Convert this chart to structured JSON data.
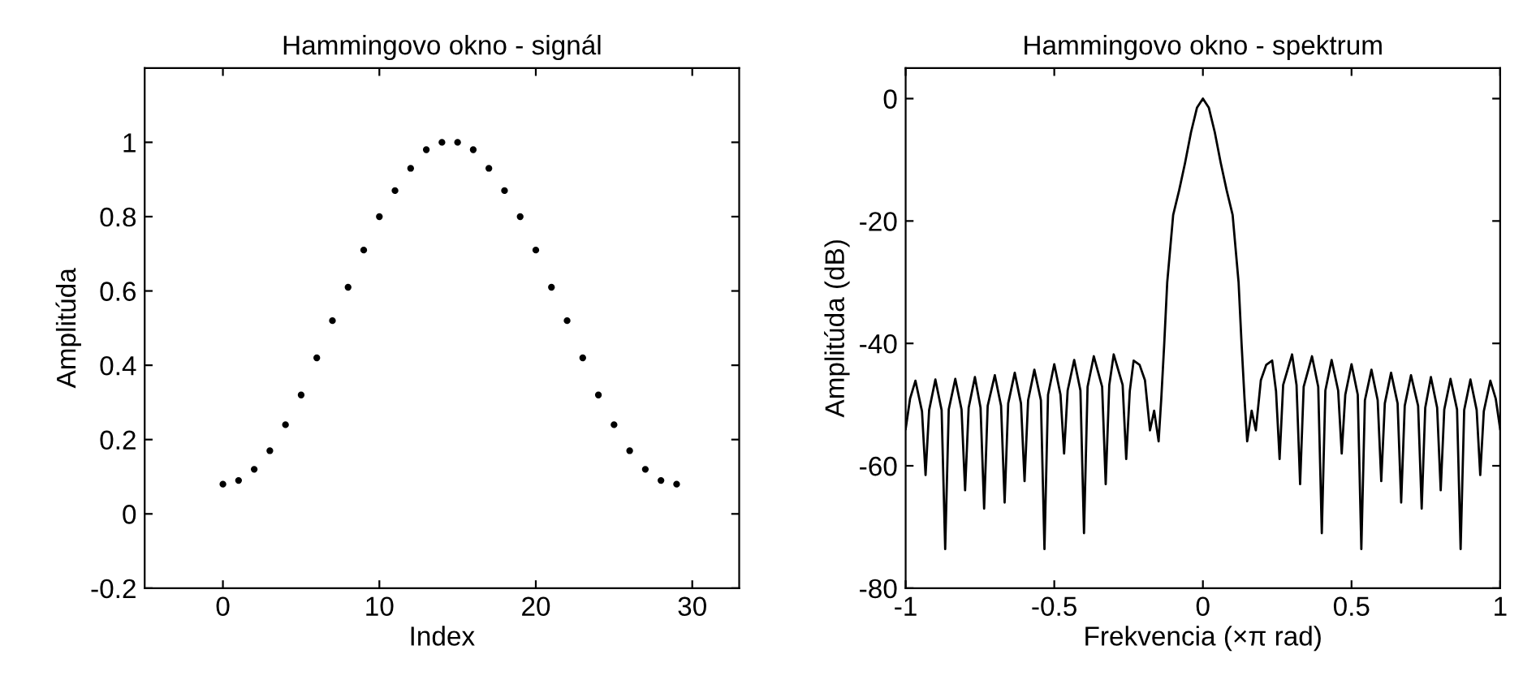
{
  "chart_data": [
    {
      "type": "scatter",
      "title": "Hammingovo okno - signál",
      "xlabel": "Index",
      "ylabel": "Amplitúda",
      "marker": "circle",
      "grid": false,
      "legend": false,
      "xlim": [
        -5,
        33
      ],
      "ylim": [
        -0.2,
        1.2
      ],
      "xticks": [
        0,
        10,
        20,
        30
      ],
      "yticks": [
        -0.2,
        0,
        0.2,
        0.4,
        0.6,
        0.8,
        1
      ],
      "series": [
        {
          "color": "#000000",
          "x": [
            0,
            1,
            2,
            3,
            4,
            5,
            6,
            7,
            8,
            9,
            10,
            11,
            12,
            13,
            14,
            15,
            16,
            17,
            18,
            19,
            20,
            21,
            22,
            23,
            24,
            25,
            26,
            27,
            28,
            29
          ],
          "values": [
            0.08,
            0.09,
            0.12,
            0.17,
            0.24,
            0.32,
            0.42,
            0.52,
            0.61,
            0.71,
            0.8,
            0.87,
            0.93,
            0.98,
            1.0,
            1.0,
            0.98,
            0.93,
            0.87,
            0.8,
            0.71,
            0.61,
            0.52,
            0.42,
            0.32,
            0.24,
            0.17,
            0.12,
            0.09,
            0.08
          ]
        }
      ]
    },
    {
      "type": "line",
      "title": "Hammingovo okno - spektrum",
      "xlabel": "Frekvencia (×π rad)",
      "ylabel": "Amplitúda (dB)",
      "line_style": "solid",
      "marker": "none",
      "grid": false,
      "legend": false,
      "xlim": [
        -1,
        1
      ],
      "ylim": [
        -80,
        5
      ],
      "xticks": [
        -1,
        -0.5,
        0,
        0.5,
        1
      ],
      "yticks": [
        -80,
        -60,
        -40,
        -20,
        0
      ],
      "series": [
        {
          "color": "#000000",
          "x": [
            -1.0,
            -0.985,
            -0.967,
            -0.945,
            -0.933,
            -0.921,
            -0.9,
            -0.879,
            -0.867,
            -0.855,
            -0.833,
            -0.812,
            -0.8,
            -0.788,
            -0.767,
            -0.748,
            -0.736,
            -0.724,
            -0.7,
            -0.679,
            -0.667,
            -0.655,
            -0.633,
            -0.612,
            -0.6,
            -0.588,
            -0.567,
            -0.545,
            -0.533,
            -0.521,
            -0.5,
            -0.479,
            -0.467,
            -0.455,
            -0.433,
            -0.412,
            -0.4,
            -0.388,
            -0.367,
            -0.339,
            -0.327,
            -0.315,
            -0.3,
            -0.27,
            -0.258,
            -0.246,
            -0.233,
            -0.213,
            -0.195,
            -0.178,
            -0.164,
            -0.149,
            -0.14,
            -0.13,
            -0.12,
            -0.1,
            -0.08,
            -0.06,
            -0.04,
            -0.02,
            0,
            0.02,
            0.04,
            0.06,
            0.08,
            0.1,
            0.12,
            0.13,
            0.14,
            0.149,
            0.164,
            0.178,
            0.195,
            0.213,
            0.233,
            0.246,
            0.258,
            0.27,
            0.3,
            0.315,
            0.327,
            0.339,
            0.367,
            0.388,
            0.4,
            0.412,
            0.433,
            0.455,
            0.467,
            0.479,
            0.5,
            0.521,
            0.533,
            0.545,
            0.567,
            0.588,
            0.6,
            0.612,
            0.633,
            0.655,
            0.667,
            0.679,
            0.7,
            0.724,
            0.736,
            0.748,
            0.767,
            0.788,
            0.8,
            0.812,
            0.833,
            0.855,
            0.867,
            0.879,
            0.9,
            0.921,
            0.933,
            0.945,
            0.967,
            0.985,
            1.0
          ],
          "values": [
            -54,
            -49,
            -46.1,
            -51.1,
            -61.5,
            -50.9,
            -45.9,
            -50.9,
            -73.6,
            -50.8,
            -45.8,
            -50.8,
            -64,
            -50.5,
            -45.5,
            -50.5,
            -67,
            -50.2,
            -45.2,
            -50.2,
            -66,
            -49.8,
            -44.8,
            -49.8,
            -62.5,
            -49.3,
            -44.3,
            -49.3,
            -73.6,
            -48.4,
            -43.4,
            -48.4,
            -58,
            -47.7,
            -42.7,
            -47.7,
            -71,
            -47.1,
            -42.1,
            -47.1,
            -63,
            -46.8,
            -41.8,
            -46.8,
            -58.9,
            -47.8,
            -42.8,
            -43.5,
            -46,
            -54.2,
            -51,
            -56,
            -49,
            -40,
            -30,
            -19,
            -15,
            -10.5,
            -5.5,
            -1.5,
            0,
            -1.5,
            -5.5,
            -10.5,
            -15,
            -19,
            -30,
            -40,
            -49,
            -56,
            -51,
            -54.2,
            -46,
            -43.5,
            -42.8,
            -47.8,
            -58.9,
            -46.8,
            -41.8,
            -46.8,
            -63,
            -47.1,
            -42.1,
            -47.1,
            -71,
            -47.7,
            -42.7,
            -47.7,
            -58,
            -48.4,
            -43.4,
            -48.4,
            -73.6,
            -49.3,
            -44.3,
            -49.3,
            -62.5,
            -49.8,
            -44.8,
            -49.8,
            -66,
            -50.2,
            -45.2,
            -50.2,
            -67,
            -50.5,
            -45.5,
            -50.5,
            -64,
            -50.8,
            -45.8,
            -50.8,
            -73.6,
            -50.9,
            -45.9,
            -50.9,
            -61.5,
            -51.1,
            -46.1,
            -49,
            -54
          ]
        }
      ]
    }
  ]
}
